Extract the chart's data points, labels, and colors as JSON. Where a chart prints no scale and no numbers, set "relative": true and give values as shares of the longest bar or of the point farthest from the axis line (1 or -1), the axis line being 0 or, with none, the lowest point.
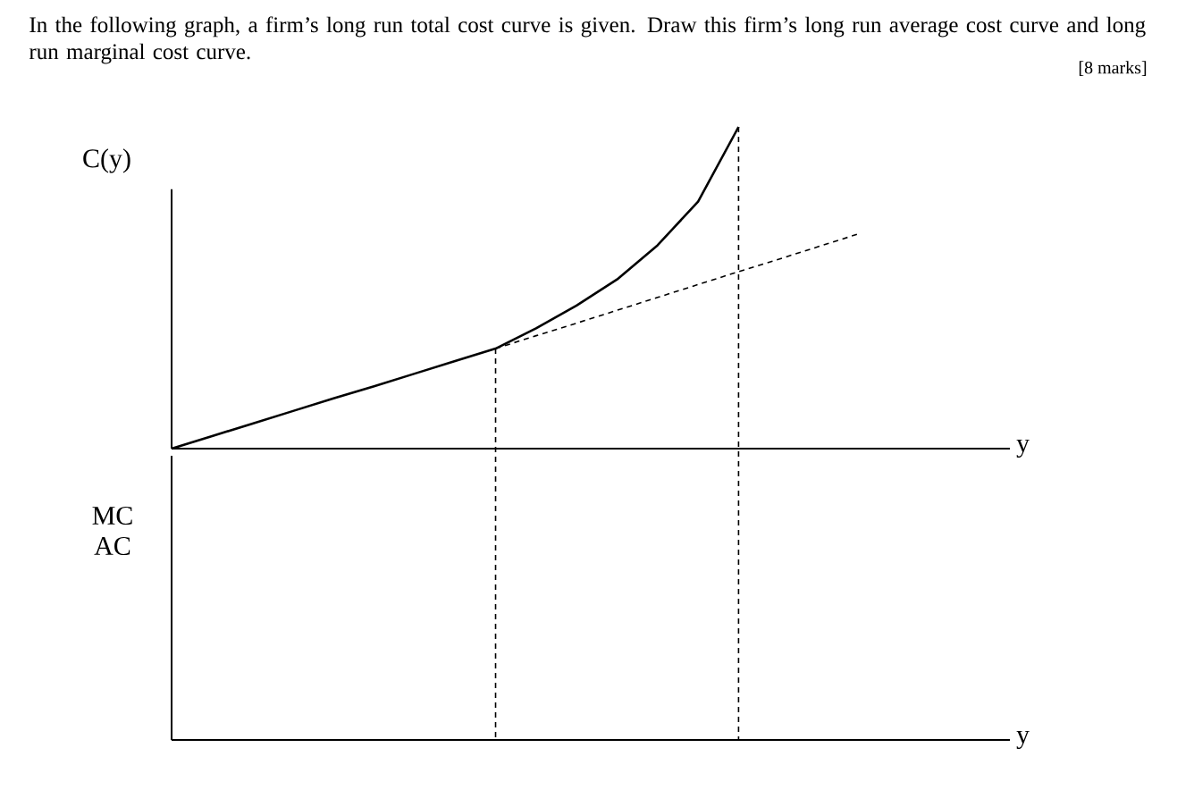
{
  "chart_data": [
    {
      "type": "line",
      "title": "In the following graph, a firm’s long run total cost curve is given. Draw this firm’s long run average cost curve and long run marginal cost curve.",
      "annotations": [
        "[8 marks]"
      ],
      "ylabel": "C(y)",
      "xlabel": "y",
      "relative": true,
      "marker": "none",
      "categories": [
        null,
        null,
        null,
        null,
        null,
        null,
        null,
        null,
        null,
        null,
        null,
        null,
        null,
        null,
        null,
        null,
        null,
        null,
        null,
        null,
        null
      ],
      "series": [
        {
          "color": "#000000",
          "line_style": "solid",
          "values": [
            0,
            0.039,
            0.078,
            0.117,
            0.156,
            0.194,
            0.233,
            0.272,
            0.311,
            0.374,
            0.445,
            0.526,
            0.632,
            0.768,
            1.0,
            null,
            null,
            null,
            null,
            null,
            null
          ]
        },
        {
          "color": "#000000",
          "line_style": "dashed",
          "values": [
            null,
            null,
            null,
            null,
            null,
            null,
            null,
            null,
            0.311,
            0.351,
            0.39,
            0.43,
            0.47,
            0.51,
            0.55,
            0.589,
            0.629,
            0.669,
            null,
            null,
            null
          ]
        }
      ]
    },
    {
      "type": "other",
      "ylabel": "MC AC",
      "xlabel": "y",
      "categories": [
        null,
        null,
        null,
        null,
        null,
        null,
        null,
        null,
        null,
        null,
        null,
        null,
        null,
        null,
        null,
        null,
        null,
        null,
        null,
        null,
        null
      ]
    }
  ]
}
